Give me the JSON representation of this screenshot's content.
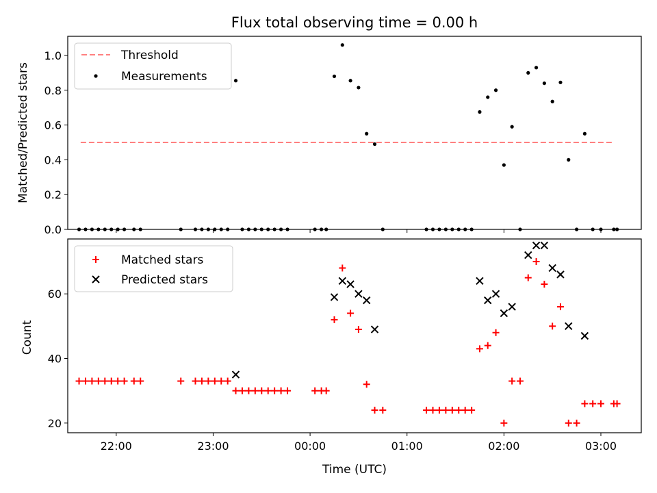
{
  "title": "Flux total observing time = 0.00 h",
  "x_axis": {
    "label": "Time (UTC)",
    "range": [
      "21:30",
      "03:25"
    ],
    "ticks": [
      {
        "time": "22:00",
        "label": "22:00"
      },
      {
        "time": "23:00",
        "label": "23:00"
      },
      {
        "time": "00:00",
        "label": "00:00"
      },
      {
        "time": "01:00",
        "label": "01:00"
      },
      {
        "time": "02:00",
        "label": "02:00"
      },
      {
        "time": "03:00",
        "label": "03:00"
      }
    ]
  },
  "colors": {
    "threshold": "#ff8080",
    "measurements": "#000000",
    "matched": "#ff0000",
    "predicted": "#000000"
  },
  "chart_data": [
    {
      "type": "scatter",
      "ylabel": "Matched/Predicted stars",
      "ylim": [
        0,
        1.11
      ],
      "yticks": [
        {
          "value": 0.0,
          "label": "0.0"
        },
        {
          "value": 0.2,
          "label": "0.2"
        },
        {
          "value": 0.4,
          "label": "0.4"
        },
        {
          "value": 0.6,
          "label": "0.6"
        },
        {
          "value": 0.8,
          "label": "0.8"
        },
        {
          "value": 1.0,
          "label": "1.0"
        }
      ],
      "legend_position": "top-left",
      "threshold": {
        "name": "Threshold",
        "value": 0.5,
        "x_range": [
          "21:38",
          "03:08"
        ]
      },
      "series": [
        {
          "name": "Measurements",
          "points": [
            [
              "21:37",
              0
            ],
            [
              "21:41",
              0
            ],
            [
              "21:45",
              0
            ],
            [
              "21:49",
              0
            ],
            [
              "21:53",
              0
            ],
            [
              "21:57",
              0
            ],
            [
              "22:01",
              0
            ],
            [
              "22:05",
              0
            ],
            [
              "22:11",
              0
            ],
            [
              "22:15",
              0
            ],
            [
              "22:40",
              0
            ],
            [
              "22:49",
              0
            ],
            [
              "22:53",
              0
            ],
            [
              "22:57",
              0
            ],
            [
              "23:01",
              0
            ],
            [
              "23:05",
              0
            ],
            [
              "23:09",
              0
            ],
            [
              "23:14",
              0.855
            ],
            [
              "23:18",
              0
            ],
            [
              "23:22",
              0
            ],
            [
              "23:26",
              0
            ],
            [
              "23:30",
              0
            ],
            [
              "23:34",
              0
            ],
            [
              "23:38",
              0
            ],
            [
              "23:42",
              0
            ],
            [
              "23:46",
              0
            ],
            [
              "00:03",
              0
            ],
            [
              "00:07",
              0
            ],
            [
              "00:10",
              0
            ],
            [
              "00:15",
              0.88
            ],
            [
              "00:20",
              1.06
            ],
            [
              "00:25",
              0.855
            ],
            [
              "00:30",
              0.815
            ],
            [
              "00:35",
              0.55
            ],
            [
              "00:40",
              0.49
            ],
            [
              "00:45",
              0
            ],
            [
              "01:12",
              0
            ],
            [
              "01:16",
              0
            ],
            [
              "01:20",
              0
            ],
            [
              "01:24",
              0
            ],
            [
              "01:28",
              0
            ],
            [
              "01:32",
              0
            ],
            [
              "01:36",
              0
            ],
            [
              "01:40",
              0
            ],
            [
              "01:45",
              0.675
            ],
            [
              "01:50",
              0.76
            ],
            [
              "01:55",
              0.8
            ],
            [
              "02:00",
              0.37
            ],
            [
              "02:05",
              0.59
            ],
            [
              "02:10",
              0
            ],
            [
              "02:15",
              0.9
            ],
            [
              "02:20",
              0.93
            ],
            [
              "02:25",
              0.84
            ],
            [
              "02:30",
              0.735
            ],
            [
              "02:35",
              0.845
            ],
            [
              "02:40",
              0.4
            ],
            [
              "02:45",
              0
            ],
            [
              "02:50",
              0.55
            ],
            [
              "02:55",
              0
            ],
            [
              "03:00",
              0
            ],
            [
              "03:08",
              0
            ],
            [
              "03:10",
              0
            ]
          ]
        }
      ]
    },
    {
      "type": "scatter",
      "ylabel": "Count",
      "ylim": [
        17,
        77
      ],
      "yticks": [
        {
          "value": 20,
          "label": "20"
        },
        {
          "value": 40,
          "label": "40"
        },
        {
          "value": 60,
          "label": "60"
        }
      ],
      "legend_position": "top-left",
      "series": [
        {
          "name": "Matched stars",
          "marker": "plus",
          "points": [
            [
              "21:37",
              33
            ],
            [
              "21:41",
              33
            ],
            [
              "21:45",
              33
            ],
            [
              "21:49",
              33
            ],
            [
              "21:53",
              33
            ],
            [
              "21:57",
              33
            ],
            [
              "22:01",
              33
            ],
            [
              "22:05",
              33
            ],
            [
              "22:11",
              33
            ],
            [
              "22:15",
              33
            ],
            [
              "22:40",
              33
            ],
            [
              "22:49",
              33
            ],
            [
              "22:53",
              33
            ],
            [
              "22:57",
              33
            ],
            [
              "23:01",
              33
            ],
            [
              "23:05",
              33
            ],
            [
              "23:09",
              33
            ],
            [
              "23:14",
              30
            ],
            [
              "23:18",
              30
            ],
            [
              "23:22",
              30
            ],
            [
              "23:26",
              30
            ],
            [
              "23:30",
              30
            ],
            [
              "23:34",
              30
            ],
            [
              "23:38",
              30
            ],
            [
              "23:42",
              30
            ],
            [
              "23:46",
              30
            ],
            [
              "00:03",
              30
            ],
            [
              "00:07",
              30
            ],
            [
              "00:10",
              30
            ],
            [
              "00:15",
              52
            ],
            [
              "00:20",
              68
            ],
            [
              "00:25",
              54
            ],
            [
              "00:30",
              49
            ],
            [
              "00:35",
              32
            ],
            [
              "00:40",
              24
            ],
            [
              "00:45",
              24
            ],
            [
              "01:12",
              24
            ],
            [
              "01:16",
              24
            ],
            [
              "01:20",
              24
            ],
            [
              "01:24",
              24
            ],
            [
              "01:28",
              24
            ],
            [
              "01:32",
              24
            ],
            [
              "01:36",
              24
            ],
            [
              "01:40",
              24
            ],
            [
              "01:45",
              43
            ],
            [
              "01:50",
              44
            ],
            [
              "01:55",
              48
            ],
            [
              "02:00",
              20
            ],
            [
              "02:05",
              33
            ],
            [
              "02:10",
              33
            ],
            [
              "02:15",
              65
            ],
            [
              "02:20",
              70
            ],
            [
              "02:25",
              63
            ],
            [
              "02:30",
              50
            ],
            [
              "02:35",
              56
            ],
            [
              "02:40",
              20
            ],
            [
              "02:45",
              20
            ],
            [
              "02:50",
              26
            ],
            [
              "02:55",
              26
            ],
            [
              "03:00",
              26
            ],
            [
              "03:08",
              26
            ],
            [
              "03:10",
              26
            ]
          ]
        },
        {
          "name": "Predicted stars",
          "marker": "x",
          "points": [
            [
              "23:14",
              35
            ],
            [
              "00:15",
              59
            ],
            [
              "00:20",
              64
            ],
            [
              "00:25",
              63
            ],
            [
              "00:30",
              60
            ],
            [
              "00:35",
              58
            ],
            [
              "00:40",
              49
            ],
            [
              "01:45",
              64
            ],
            [
              "01:50",
              58
            ],
            [
              "01:55",
              60
            ],
            [
              "02:00",
              54
            ],
            [
              "02:05",
              56
            ],
            [
              "02:15",
              72
            ],
            [
              "02:20",
              75
            ],
            [
              "02:25",
              75
            ],
            [
              "02:30",
              68
            ],
            [
              "02:35",
              66
            ],
            [
              "02:40",
              50
            ],
            [
              "02:50",
              47
            ]
          ]
        }
      ]
    }
  ]
}
